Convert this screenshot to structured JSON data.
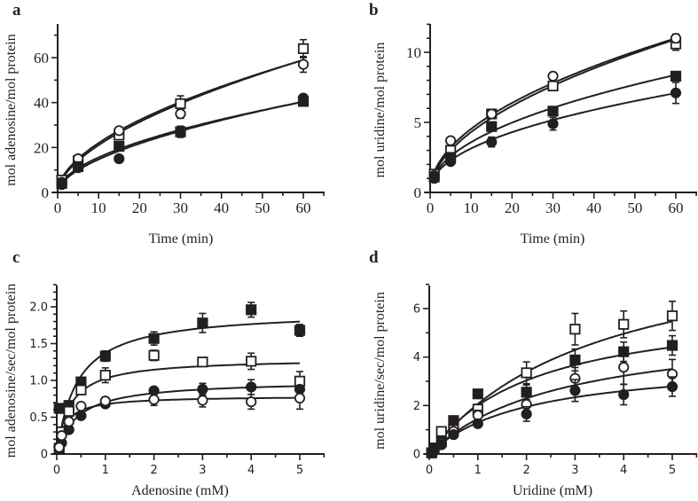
{
  "chart_data": [
    {
      "panel": "a",
      "type": "scatter",
      "fit": "power",
      "title": "",
      "xlabel": "Time (min)",
      "ylabel": "mol adenosine/mol protein",
      "xlim": [
        0,
        65
      ],
      "ylim": [
        0,
        70
      ],
      "xticks": [
        0,
        10,
        20,
        30,
        40,
        50,
        60
      ],
      "yticks": [
        0,
        20,
        40,
        60
      ],
      "y_minor_step": 10,
      "x_minor_step": 5,
      "tick_font": "serif",
      "grid": false,
      "legend": "none",
      "x": [
        1,
        5,
        15,
        30,
        60
      ],
      "series": [
        {
          "name": "open-square",
          "marker": "square-open",
          "values": [
            5.5,
            14,
            25.5,
            39.5,
            64
          ],
          "err": [
            1.5,
            1.5,
            2,
            3.5,
            4
          ],
          "curve_a": 5.6,
          "curve_b": 0.575
        },
        {
          "name": "open-circle",
          "marker": "circle-open",
          "values": [
            4.5,
            15,
            27.5,
            35,
            57
          ],
          "err": [
            1,
            1,
            1.5,
            2,
            3.5
          ],
          "curve_a": 6.2,
          "curve_b": 0.55
        },
        {
          "name": "filled-square",
          "marker": "square-filled",
          "values": [
            4,
            11.5,
            20.5,
            27,
            40.5
          ],
          "err": [
            0.8,
            1,
            2,
            2.5,
            2
          ],
          "curve_a": 4.6,
          "curve_b": 0.53
        },
        {
          "name": "filled-circle",
          "marker": "circle-filled",
          "values": [
            3.5,
            11,
            15,
            27,
            42
          ],
          "err": [
            0.8,
            1,
            1,
            2,
            1.5
          ],
          "curve_a": 4.0,
          "curve_b": 0.565
        }
      ]
    },
    {
      "panel": "b",
      "type": "scatter",
      "fit": "power",
      "title": "",
      "xlabel": "Time (min)",
      "ylabel": "mol uridine/mol protein",
      "xlim": [
        0,
        65
      ],
      "ylim": [
        0,
        12
      ],
      "xticks": [
        0,
        10,
        20,
        30,
        40,
        50,
        60
      ],
      "yticks": [
        0,
        5,
        10
      ],
      "y_minor_step": 1,
      "x_minor_step": 5,
      "tick_font": "serif",
      "grid": false,
      "legend": "none",
      "x": [
        1,
        5,
        15,
        30,
        60
      ],
      "series": [
        {
          "name": "open-square",
          "marker": "square-open",
          "values": [
            1.3,
            3.0,
            5.6,
            7.6,
            10.6
          ],
          "err": [
            0.2,
            0.2,
            0.25,
            0.3,
            0.45
          ],
          "curve_a": 1.3,
          "curve_b": 0.52
        },
        {
          "name": "open-circle",
          "marker": "circle-open",
          "values": [
            1.2,
            3.7,
            5.6,
            8.3,
            11.0
          ],
          "err": [
            0.2,
            0.2,
            0.2,
            0.2,
            0.3
          ],
          "curve_a": 1.45,
          "curve_b": 0.495
        },
        {
          "name": "filled-square",
          "marker": "square-filled",
          "values": [
            1.1,
            2.5,
            4.7,
            5.8,
            8.3
          ],
          "err": [
            0.15,
            0.2,
            0.2,
            0.2,
            0.25
          ],
          "curve_a": 1.2,
          "curve_b": 0.475
        },
        {
          "name": "filled-circle",
          "marker": "circle-filled",
          "values": [
            1.0,
            2.2,
            3.6,
            4.9,
            7.1
          ],
          "err": [
            0.15,
            0.2,
            0.35,
            0.45,
            0.75
          ],
          "curve_a": 1.1,
          "curve_b": 0.455
        }
      ]
    },
    {
      "panel": "c",
      "type": "scatter",
      "fit": "michaelis-menten",
      "title": "",
      "xlabel": "Adenosine (mM)",
      "ylabel": "mol adenosine/sec/mol protein",
      "xlim": [
        0,
        5.5
      ],
      "ylim": [
        0,
        2.3
      ],
      "xticks": [
        0,
        1,
        2,
        3,
        4,
        5
      ],
      "ytick_labels": [
        "0",
        "0.5",
        "1.0",
        "1.5",
        "2.0"
      ],
      "yticks": [
        0,
        0.5,
        1.0,
        1.5,
        2.0
      ],
      "y_minor_step": 0.1,
      "x_minor_step": 0.5,
      "tick_font": "sans",
      "grid": false,
      "legend": "none",
      "x": [
        0.05,
        0.1,
        0.25,
        0.5,
        1,
        2,
        3,
        4,
        5
      ],
      "series": [
        {
          "name": "filled-square",
          "marker": "square-filled",
          "values": [
            0.62,
            0.62,
            0.66,
            0.98,
            1.33,
            1.57,
            1.78,
            1.96,
            1.68
          ],
          "err": [
            0.03,
            0.03,
            0.04,
            0.05,
            0.07,
            0.09,
            0.13,
            0.1,
            0.08
          ],
          "vmax": 1.95,
          "km": 0.42
        },
        {
          "name": "open-square",
          "marker": "square-open",
          "values": [
            0.08,
            0.3,
            0.58,
            0.87,
            1.07,
            1.34,
            1.25,
            1.26,
            0.99
          ],
          "err": [
            0.03,
            0.05,
            0.05,
            0.06,
            0.1,
            0.07,
            0.04,
            0.11,
            0.13
          ],
          "vmax": 1.3,
          "km": 0.27
        },
        {
          "name": "filled-circle",
          "marker": "circle-filled",
          "values": [
            0.06,
            0.15,
            0.33,
            0.52,
            0.68,
            0.86,
            0.88,
            0.91,
            0.88
          ],
          "err": [
            0.02,
            0.03,
            0.03,
            0.03,
            0.04,
            0.04,
            0.08,
            0.1,
            0.04
          ],
          "vmax": 1.0,
          "km": 0.42
        },
        {
          "name": "open-circle",
          "marker": "circle-open",
          "values": [
            0.09,
            0.25,
            0.44,
            0.65,
            0.72,
            0.74,
            0.73,
            0.71,
            0.76
          ],
          "err": [
            0.03,
            0.03,
            0.03,
            0.04,
            0.04,
            0.08,
            0.09,
            0.1,
            0.15
          ],
          "vmax": 0.79,
          "km": 0.17
        }
      ]
    },
    {
      "panel": "d",
      "type": "scatter",
      "fit": "michaelis-menten",
      "title": "",
      "xlabel": "Uridine (mM)",
      "ylabel": "mol uridine/sec/mol protein",
      "xlim": [
        0,
        5.5
      ],
      "ylim": [
        0,
        7
      ],
      "xticks": [
        0,
        1,
        2,
        3,
        4,
        5
      ],
      "ytick_labels": [
        "0",
        "2",
        "4",
        "6"
      ],
      "yticks": [
        0,
        2,
        4,
        6
      ],
      "y_minor_step": 1,
      "x_minor_step": 0.5,
      "tick_font": "sans",
      "grid": false,
      "legend": "none",
      "x": [
        0.05,
        0.1,
        0.25,
        0.5,
        1,
        2,
        3,
        4,
        5
      ],
      "series": [
        {
          "name": "open-square",
          "marker": "square-open",
          "values": [
            0.05,
            0.25,
            0.93,
            1.0,
            1.85,
            3.35,
            5.15,
            5.35,
            5.7
          ],
          "err": [
            0.05,
            0.05,
            0.1,
            0.1,
            0.2,
            0.45,
            0.65,
            0.55,
            0.6
          ],
          "vmax": 9.3,
          "km": 3.5
        },
        {
          "name": "filled-square",
          "marker": "square-filled",
          "values": [
            0.05,
            0.2,
            0.5,
            1.38,
            2.48,
            2.55,
            3.88,
            4.22,
            4.48
          ],
          "err": [
            0.05,
            0.05,
            0.08,
            0.1,
            0.15,
            0.3,
            0.45,
            0.4,
            0.4
          ],
          "vmax": 6.3,
          "km": 2.15
        },
        {
          "name": "open-circle",
          "marker": "circle-open",
          "values": [
            0.04,
            0.15,
            0.45,
            0.93,
            1.6,
            2.05,
            3.12,
            3.58,
            3.3
          ],
          "err": [
            0.04,
            0.05,
            0.08,
            0.1,
            0.2,
            0.4,
            0.45,
            0.7,
            0.6
          ],
          "vmax": 5.4,
          "km": 2.7
        },
        {
          "name": "filled-circle",
          "marker": "circle-filled",
          "values": [
            0.04,
            0.12,
            0.38,
            0.8,
            1.25,
            1.65,
            2.62,
            2.45,
            2.78
          ],
          "err": [
            0.03,
            0.04,
            0.06,
            0.08,
            0.12,
            0.3,
            0.45,
            0.42,
            0.4
          ],
          "vmax": 3.9,
          "km": 2.0
        }
      ]
    }
  ],
  "panel_labels": [
    "a",
    "b",
    "c",
    "d"
  ]
}
